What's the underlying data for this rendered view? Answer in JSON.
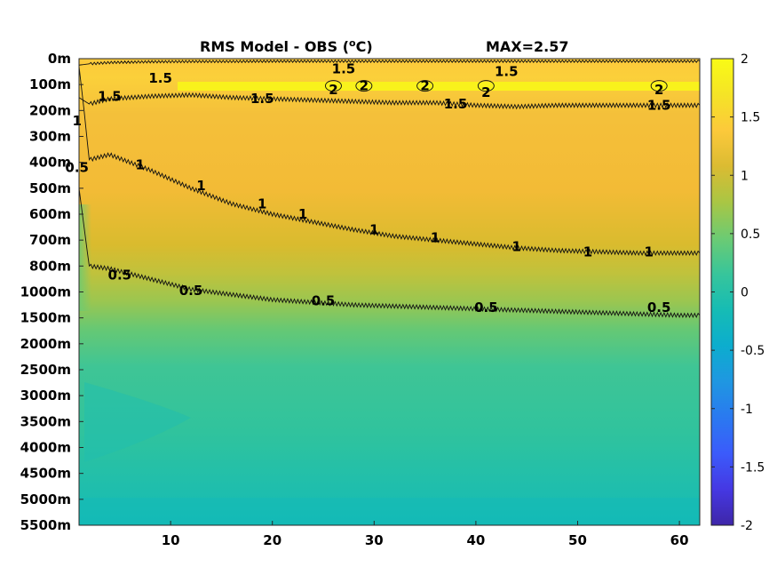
{
  "chart_data": {
    "type": "heatmap",
    "title_main": "RMS Model - OBS (",
    "title_sup": "o",
    "title_unit": "C)",
    "max_label": "MAX=2.57",
    "ylabels": [
      "0m",
      "100m",
      "200m",
      "300m",
      "400m",
      "500m",
      "600m",
      "700m",
      "800m",
      "1000m",
      "1500m",
      "2000m",
      "2500m",
      "3000m",
      "3500m",
      "4000m",
      "4500m",
      "5000m",
      "5500m"
    ],
    "xticks": [
      10,
      20,
      30,
      40,
      50,
      60
    ],
    "xlim": [
      1,
      62
    ],
    "clim": [
      -2,
      2
    ],
    "colorbar_ticks": [
      "2",
      "1.5",
      "1",
      "0.5",
      "0",
      "-0.5",
      "-1",
      "-1.5",
      "-2"
    ],
    "colormap": [
      "#3e26a8",
      "#4538e3",
      "#3b5bfb",
      "#2a79f0",
      "#1f97e1",
      "#0cadce",
      "#16bcb4",
      "#37c59b",
      "#6ccb73",
      "#a9c644",
      "#dbbb32",
      "#fcc93b",
      "#f5e426",
      "#f9fb15"
    ],
    "contour_levels": [
      0.5,
      1,
      1.5,
      2
    ],
    "contours": [
      {
        "level": "1.5",
        "x": [
          1,
          2,
          4,
          8,
          12,
          16,
          20,
          24,
          28,
          32,
          36,
          40,
          44,
          48,
          52,
          56,
          60,
          62
        ],
        "y": [
          0.25,
          0.2,
          0.15,
          0.12,
          0.11,
          0.11,
          0.1,
          0.1,
          0.1,
          0.1,
          0.1,
          0.1,
          0.1,
          0.1,
          0.1,
          0.1,
          0.1,
          0.1
        ]
      },
      {
        "level": "1.5",
        "x": [
          1,
          2,
          4,
          8,
          12,
          16,
          20,
          24,
          28,
          32,
          36,
          40,
          44,
          48,
          52,
          56,
          60,
          62
        ],
        "y": [
          1.5,
          1.75,
          1.55,
          1.45,
          1.4,
          1.5,
          1.55,
          1.6,
          1.65,
          1.7,
          1.7,
          1.8,
          1.85,
          1.8,
          1.8,
          1.8,
          1.8,
          1.8
        ]
      },
      {
        "level": "1",
        "x": [
          1,
          1.5,
          2,
          4,
          8,
          12,
          16,
          20,
          24,
          28,
          32,
          36,
          40,
          44,
          48,
          52,
          56,
          60,
          62
        ],
        "y": [
          0.3,
          2,
          3.9,
          3.7,
          4.3,
          5.0,
          5.6,
          6.0,
          6.3,
          6.6,
          6.85,
          7.0,
          7.15,
          7.3,
          7.4,
          7.45,
          7.5,
          7.5,
          7.5
        ]
      },
      {
        "level": "0.5",
        "x": [
          0.5,
          1,
          2,
          4,
          8,
          12,
          16,
          20,
          24,
          28,
          32,
          36,
          40,
          44,
          48,
          52,
          56,
          60,
          62
        ],
        "y": [
          1.5,
          5,
          8.0,
          8.1,
          8.5,
          8.9,
          9.1,
          9.3,
          9.4,
          9.5,
          9.55,
          9.6,
          9.65,
          9.7,
          9.75,
          9.8,
          9.85,
          9.9,
          9.9
        ]
      }
    ],
    "contour_labels": [
      {
        "text": "1.5",
        "x": 9,
        "y": 0.75
      },
      {
        "text": "1.5",
        "x": 27,
        "y": 0.4
      },
      {
        "text": "1.5",
        "x": 43,
        "y": 0.5
      },
      {
        "text": "1.5",
        "x": 4,
        "y": 1.45
      },
      {
        "text": "1.5",
        "x": 19,
        "y": 1.55
      },
      {
        "text": "1.5",
        "x": 38,
        "y": 1.75
      },
      {
        "text": "1.5",
        "x": 58,
        "y": 1.8
      },
      {
        "text": "2",
        "x": 26,
        "y": 1.2
      },
      {
        "text": "2",
        "x": 29,
        "y": 1.05
      },
      {
        "text": "2",
        "x": 35,
        "y": 1.05
      },
      {
        "text": "2",
        "x": 41,
        "y": 1.3
      },
      {
        "text": "2",
        "x": 58,
        "y": 1.2
      },
      {
        "text": "1",
        "x": 0.8,
        "y": 2.4
      },
      {
        "text": "0.5",
        "x": 0.8,
        "y": 4.2
      },
      {
        "text": "1",
        "x": 7,
        "y": 4.1
      },
      {
        "text": "1",
        "x": 13,
        "y": 4.9
      },
      {
        "text": "1",
        "x": 19,
        "y": 5.6
      },
      {
        "text": "1",
        "x": 23,
        "y": 6.0
      },
      {
        "text": "1",
        "x": 30,
        "y": 6.6
      },
      {
        "text": "1",
        "x": 36,
        "y": 6.9
      },
      {
        "text": "1",
        "x": 44,
        "y": 7.25
      },
      {
        "text": "1",
        "x": 51,
        "y": 7.45
      },
      {
        "text": "1",
        "x": 57,
        "y": 7.45
      },
      {
        "text": "0.5",
        "x": 5,
        "y": 8.35
      },
      {
        "text": "0.5",
        "x": 12,
        "y": 8.95
      },
      {
        "text": "0.5",
        "x": 25,
        "y": 9.35
      },
      {
        "text": "0.5",
        "x": 41,
        "y": 9.6
      },
      {
        "text": "0.5",
        "x": 58,
        "y": 9.6
      }
    ]
  }
}
